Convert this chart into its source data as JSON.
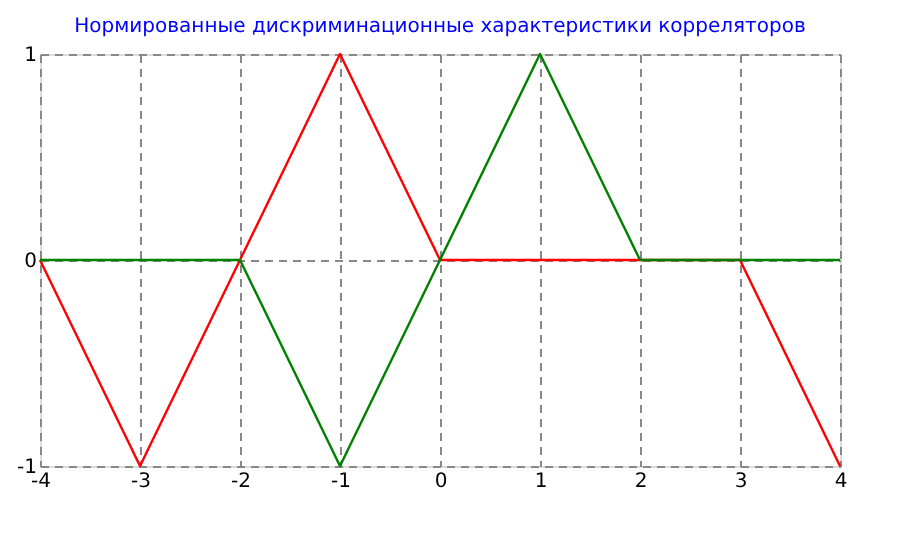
{
  "chart_data": {
    "type": "line",
    "title": "Нормированные дискриминационные характеристики корреляторов",
    "x": [
      -4,
      -3,
      -2,
      -1,
      0,
      1,
      2,
      3,
      4
    ],
    "series": [
      {
        "color": "#ff0000",
        "values": [
          0,
          -1,
          0,
          1,
          0,
          0,
          0,
          0,
          -1
        ]
      },
      {
        "color": "#008000",
        "values": [
          0,
          0,
          0,
          -1,
          0,
          1,
          0,
          0,
          0
        ]
      }
    ],
    "xlim": [
      -4,
      4
    ],
    "xticks": [
      -4,
      -3,
      -2,
      -1,
      0,
      1,
      2,
      3,
      4
    ],
    "ylim": [
      -1,
      1
    ],
    "yticks": [
      -1,
      0,
      1
    ],
    "grid": true,
    "line_style": "solid",
    "marker": "none"
  }
}
